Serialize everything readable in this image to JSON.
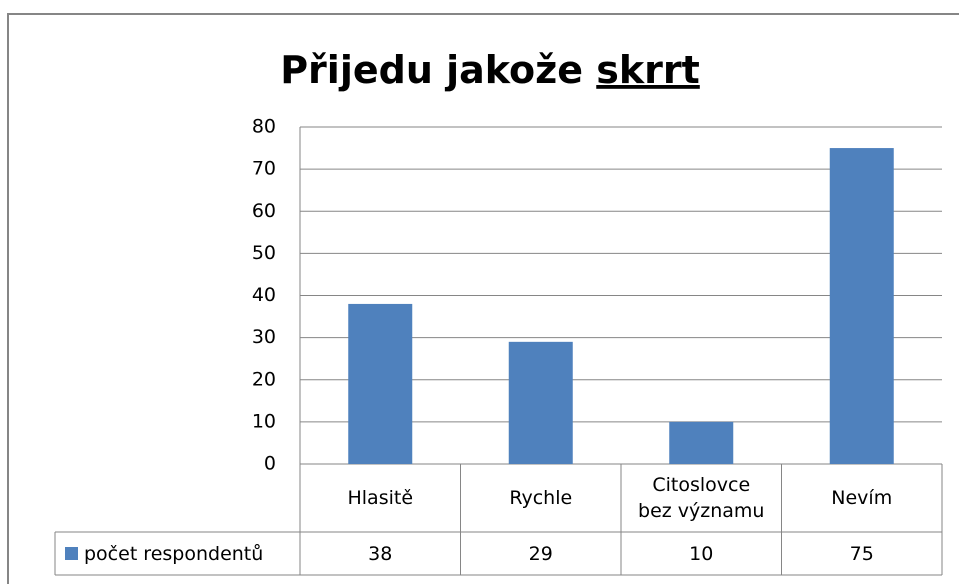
{
  "chart_data": {
    "type": "bar",
    "title": {
      "text": "Přijedu jakože",
      "underlined": "skrrt"
    },
    "categories": [
      "Hlasitě",
      "Rychle",
      "Citoslovce bez významu",
      "Nevím"
    ],
    "series": [
      {
        "name": "počet respondentů",
        "color": "#4f81bd",
        "values": [
          38,
          29,
          10,
          75
        ]
      }
    ],
    "ylim": [
      0,
      80
    ],
    "yticks": [
      0,
      10,
      20,
      30,
      40,
      50,
      60,
      70,
      80
    ],
    "grid": true,
    "data_table": true
  }
}
